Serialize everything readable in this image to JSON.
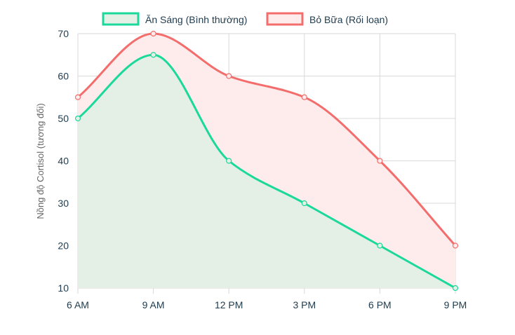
{
  "chart_data": {
    "type": "area",
    "categories": [
      "6 AM",
      "9 AM",
      "12 PM",
      "3 PM",
      "6 PM",
      "9 PM"
    ],
    "ylabel": "Nồng độ Cortisol (tương đối)",
    "ylim": [
      10,
      70
    ],
    "yticks": [
      10,
      20,
      30,
      40,
      50,
      60,
      70
    ],
    "grid": true,
    "legend": "top-center",
    "series": [
      {
        "name": "Ăn Sáng (Bình thường)",
        "values": [
          50,
          65,
          40,
          30,
          20,
          10
        ],
        "color": "#1ad99a",
        "fill": "#e4efe6"
      },
      {
        "name": "Bỏ Bữa (Rối loạn)",
        "values": [
          55,
          70,
          60,
          55,
          40,
          20
        ],
        "color": "#f46d6d",
        "fill": "#fdeceb"
      }
    ]
  }
}
